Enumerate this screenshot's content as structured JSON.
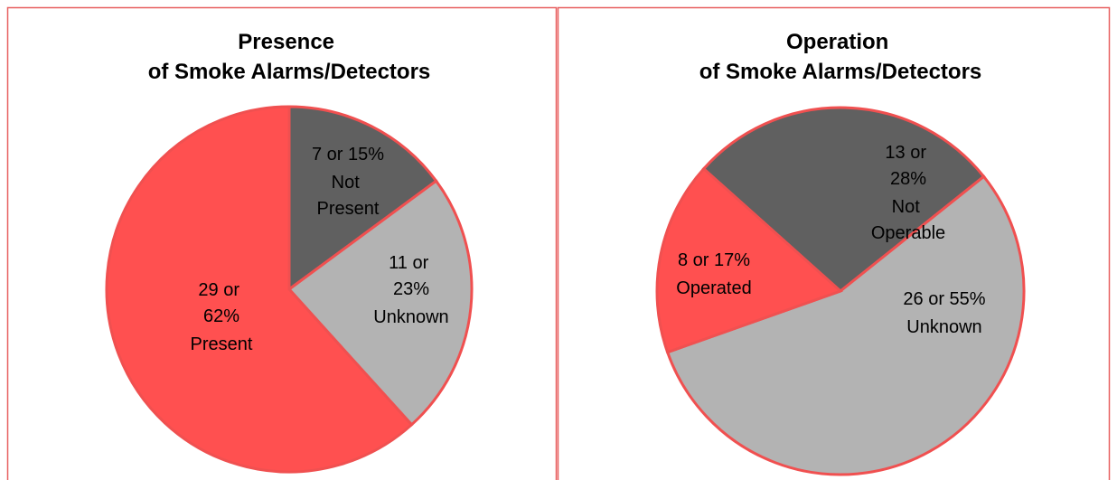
{
  "chart_data": [
    {
      "type": "pie",
      "title": "Presence of Smoke Alarms/Detectors",
      "categories": [
        "Not Present",
        "Unknown",
        "Present"
      ],
      "values": [
        7,
        11,
        29
      ],
      "value_labels": [
        "7 or 15%",
        "11 or 23%",
        "29 or 62%"
      ],
      "colors": [
        "#606060",
        "#b3b3b3",
        "#ff5050"
      ]
    },
    {
      "type": "pie",
      "title": "Operation of Smoke Alarms/Detectors",
      "categories": [
        "Not Operable",
        "Unknown",
        "Operated"
      ],
      "values": [
        13,
        26,
        8
      ],
      "value_labels": [
        "13 or 28%",
        "26 or 55%",
        "8 or 17%"
      ],
      "colors": [
        "#606060",
        "#b3b3b3",
        "#ff5050"
      ]
    }
  ]
}
